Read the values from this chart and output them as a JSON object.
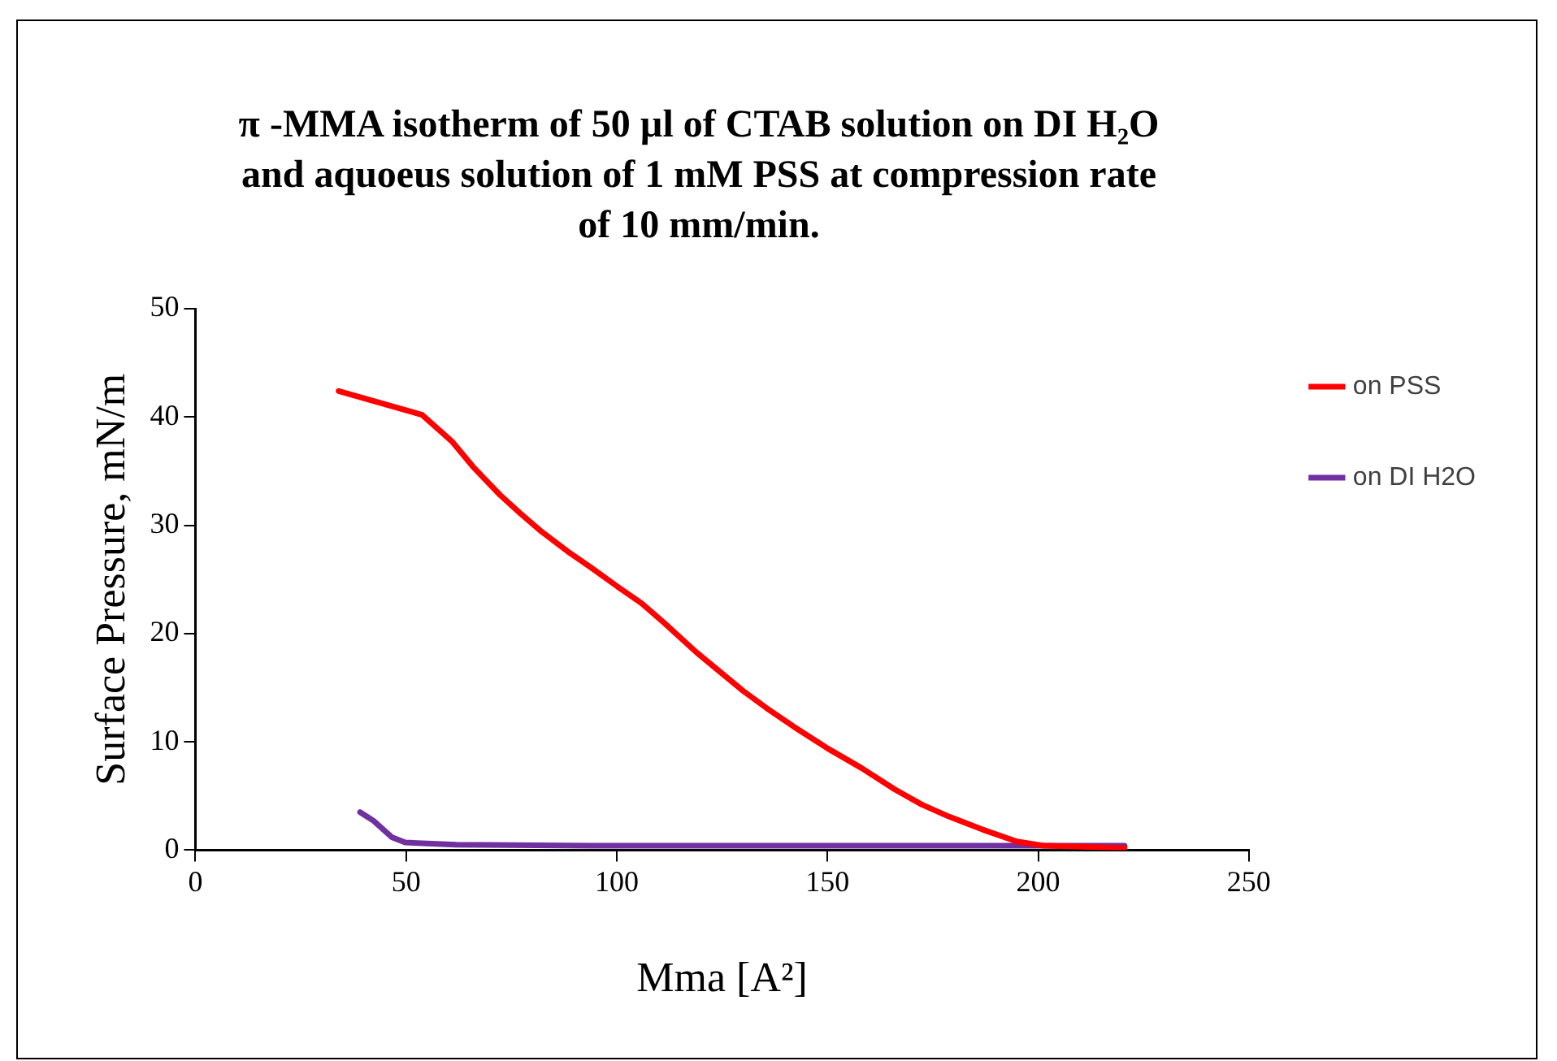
{
  "chart_data": {
    "type": "line",
    "title": "π -MMA isotherm of 50 µl of CTAB solution on DI H₂O and aquoeus solution of 1 mM PSS at compression rate of 10 mm/min.",
    "xlabel": "Mma [A²]",
    "ylabel": "Surface Pressure, mN/m",
    "xlim": [
      0,
      250
    ],
    "xticks": [
      0,
      50,
      100,
      150,
      200,
      250
    ],
    "ylim": [
      0,
      50
    ],
    "yticks": [
      0,
      10,
      20,
      30,
      40,
      50
    ],
    "grid": false,
    "legend": "right",
    "marker": "none",
    "line_style": "solid",
    "series": [
      {
        "name": "on PSS",
        "color": "#ff0000",
        "x": [
          34,
          53.8,
          61,
          65.9,
          72.3,
          77.1,
          82.2,
          88.3,
          93.9,
          100.3,
          105.9,
          111.5,
          118.8,
          124.4,
          130,
          135.6,
          142,
          150,
          158,
          166,
          172.4,
          178.8,
          186.8,
          194.9,
          201.3,
          220.5
        ],
        "values": [
          42.4,
          40.2,
          37.7,
          35.4,
          32.8,
          31.1,
          29.4,
          27.6,
          26.1,
          24.3,
          22.8,
          20.9,
          18.3,
          16.5,
          14.7,
          13.1,
          11.4,
          9.4,
          7.6,
          5.6,
          4.2,
          3.1,
          1.9,
          0.8,
          0.4,
          0.2
        ]
      },
      {
        "name": "on DI H2O",
        "color": "#7030a0",
        "x": [
          39.1,
          42.3,
          46.6,
          49.8,
          61.9,
          93.9,
          158,
          220.5
        ],
        "values": [
          3.5,
          2.7,
          1.2,
          0.7,
          0.5,
          0.4,
          0.4,
          0.4
        ]
      }
    ]
  }
}
